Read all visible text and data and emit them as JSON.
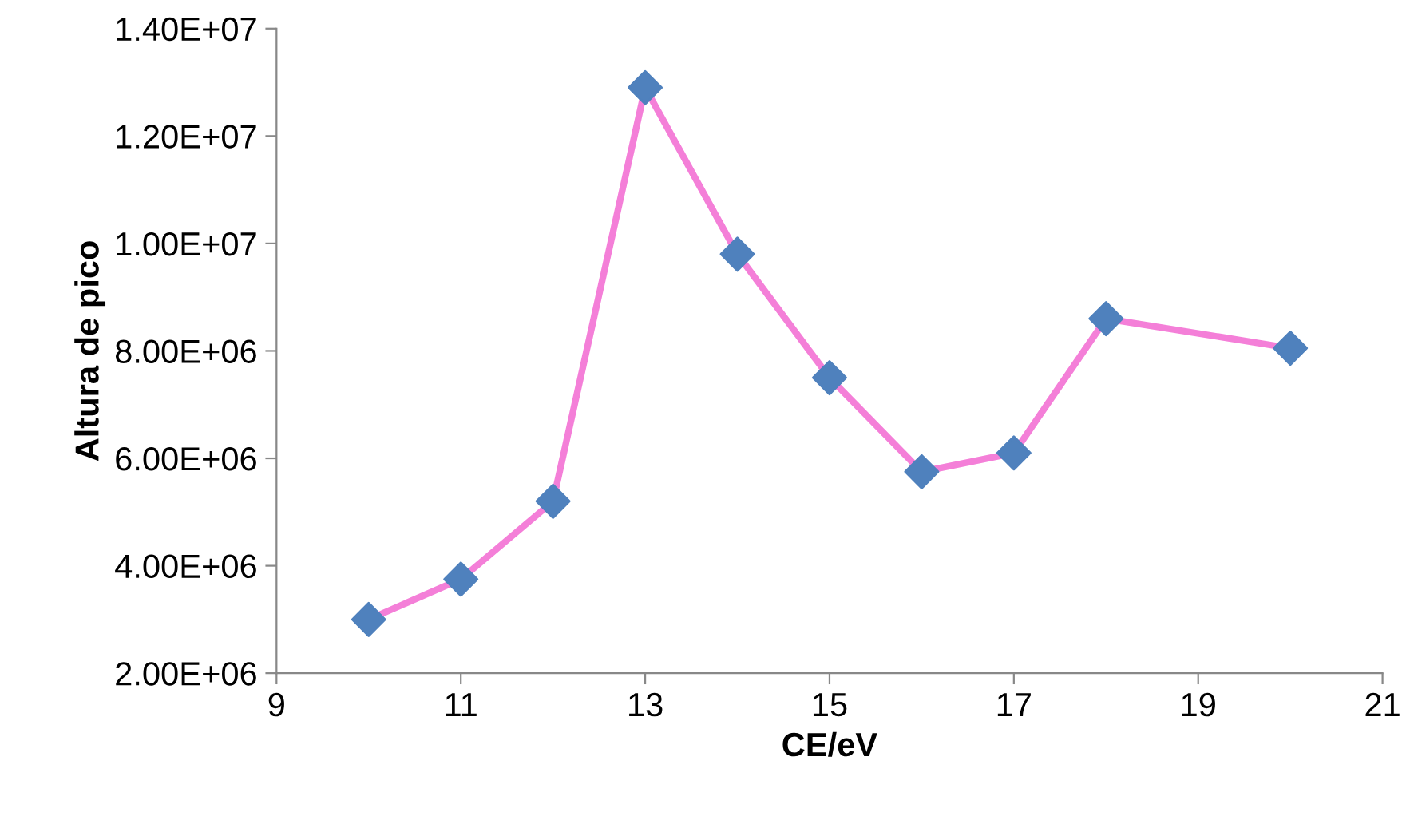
{
  "chart_data": {
    "type": "line",
    "xlabel": "CE/eV",
    "ylabel": "Altura de pico",
    "x": [
      10,
      11,
      12,
      13,
      14,
      15,
      16,
      17,
      18,
      20
    ],
    "series": [
      {
        "color": "#f47fd8",
        "colors": [
          "#4f81bd",
          "#4f81bd",
          "#4f81bd",
          "#4f81bd",
          "#4f81bd",
          "#4f81bd",
          "#4f81bd",
          "#4f81bd",
          "#4f81bd",
          "#4f81bd"
        ],
        "values": [
          3000000.0,
          3750000.0,
          5200000.0,
          12900000.0,
          9800000.0,
          7500000.0,
          5750000.0,
          6100000.0,
          8600000.0,
          8050000.0
        ]
      }
    ],
    "xlim": [
      9,
      21
    ],
    "xticks": [
      9,
      11,
      13,
      15,
      17,
      19,
      21
    ],
    "ylim": [
      2000000.0,
      14000000.0
    ],
    "yticks": [
      {
        "value": 2000000.0,
        "label": "2.00E+06"
      },
      {
        "value": 4000000.0,
        "label": "4.00E+06"
      },
      {
        "value": 6000000.0,
        "label": "6.00E+06"
      },
      {
        "value": 8000000.0,
        "label": "8.00E+06"
      },
      {
        "value": 10000000.0,
        "label": "1.00E+07"
      },
      {
        "value": 12000000.0,
        "label": "1.20E+07"
      },
      {
        "value": 14000000.0,
        "label": "1.40E+07"
      }
    ],
    "marker": "diamond",
    "line_style": "solid",
    "grid": false
  }
}
